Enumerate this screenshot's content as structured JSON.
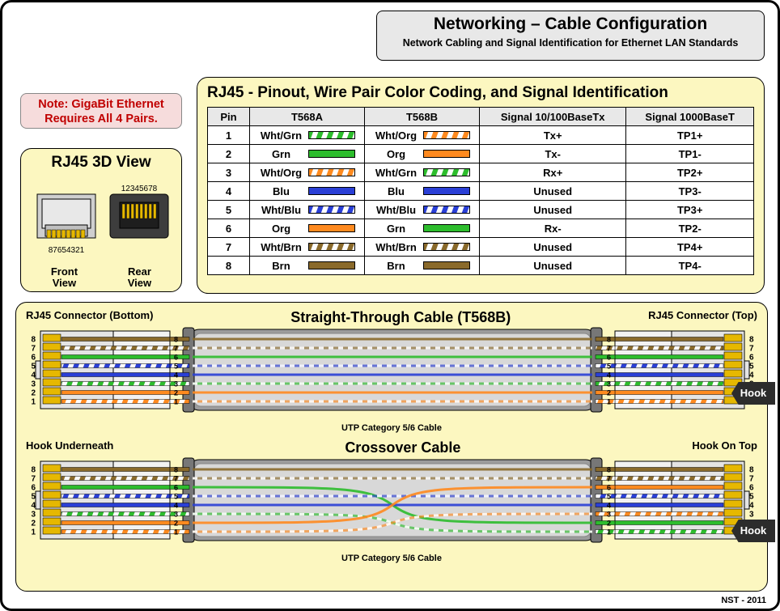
{
  "header": {
    "title": "Networking – Cable Configuration",
    "subtitle": "Network Cabling and Signal Identification for Ethernet LAN Standards"
  },
  "note": {
    "line1": "Note: GigaBit Ethernet",
    "line2": "Requires All 4 Pairs."
  },
  "rj45_3d": {
    "title": "RJ45 3D View",
    "front_label": "Front\nView",
    "rear_label": "Rear\nView",
    "front_pins": "87654321",
    "rear_pins": "12345678"
  },
  "pinout": {
    "title": "RJ45 -  Pinout, Wire Pair Color Coding, and Signal Identification",
    "columns": [
      "Pin",
      "T568A",
      "T568B",
      "Signal 10/100BaseTx",
      "Signal 1000BaseT"
    ],
    "rows": [
      {
        "pin": "1",
        "a": {
          "name": "Wht/Grn",
          "stripe": true,
          "color": "#2dbd2d"
        },
        "b": {
          "name": "Wht/Org",
          "stripe": true,
          "color": "#ff8a1f"
        },
        "sig100": "Tx+",
        "sig1000": "TP1+"
      },
      {
        "pin": "2",
        "a": {
          "name": "Grn",
          "stripe": false,
          "color": "#2dbd2d"
        },
        "b": {
          "name": "Org",
          "stripe": false,
          "color": "#ff8a1f"
        },
        "sig100": "Tx-",
        "sig1000": "TP1-"
      },
      {
        "pin": "3",
        "a": {
          "name": "Wht/Org",
          "stripe": true,
          "color": "#ff8a1f"
        },
        "b": {
          "name": "Wht/Grn",
          "stripe": true,
          "color": "#2dbd2d"
        },
        "sig100": "Rx+",
        "sig1000": "TP2+"
      },
      {
        "pin": "4",
        "a": {
          "name": "Blu",
          "stripe": false,
          "color": "#2a3fd6"
        },
        "b": {
          "name": "Blu",
          "stripe": false,
          "color": "#2a3fd6"
        },
        "sig100": "Unused",
        "sig1000": "TP3-"
      },
      {
        "pin": "5",
        "a": {
          "name": "Wht/Blu",
          "stripe": true,
          "color": "#2a3fd6"
        },
        "b": {
          "name": "Wht/Blu",
          "stripe": true,
          "color": "#2a3fd6"
        },
        "sig100": "Unused",
        "sig1000": "TP3+"
      },
      {
        "pin": "6",
        "a": {
          "name": "Org",
          "stripe": false,
          "color": "#ff8a1f"
        },
        "b": {
          "name": "Grn",
          "stripe": false,
          "color": "#2dbd2d"
        },
        "sig100": "Rx-",
        "sig1000": "TP2-"
      },
      {
        "pin": "7",
        "a": {
          "name": "Wht/Brn",
          "stripe": true,
          "color": "#8a6a2b"
        },
        "b": {
          "name": "Wht/Brn",
          "stripe": true,
          "color": "#8a6a2b"
        },
        "sig100": "Unused",
        "sig1000": "TP4+"
      },
      {
        "pin": "8",
        "a": {
          "name": "Brn",
          "stripe": false,
          "color": "#8a6a2b"
        },
        "b": {
          "name": "Brn",
          "stripe": false,
          "color": "#8a6a2b"
        },
        "sig100": "Unused",
        "sig1000": "TP4-"
      }
    ]
  },
  "colors": {
    "org": "#ff8a1f",
    "grn": "#2dbd2d",
    "blu": "#2a3fd6",
    "brn": "#8a6a2b",
    "panel_yellow": "#fcf7c0",
    "panel_gray": "#e8e8e8",
    "note_bg": "#f6dcdc",
    "gold": "#e6b800",
    "conn_body": "#e4e4e4",
    "cable_sheath": "#9c9c9c",
    "cable_core": "#d8d8d8",
    "hook": "#2c2c2c"
  },
  "cables": {
    "left_label": "RJ45 Connector (Bottom)",
    "right_label": "RJ45 Connector (Top)",
    "hook_under": "Hook Underneath",
    "hook_top": "Hook On Top",
    "utp_label": "UTP Category 5/6 Cable",
    "hook_text": "Hook",
    "straight": {
      "title": "Straight-Through Cable (T568B)",
      "left_order": [
        "brn",
        "wbrn",
        "grn",
        "wblu",
        "blu",
        "wgrn",
        "org",
        "worg"
      ],
      "right_order": [
        "brn",
        "wbrn",
        "grn",
        "wblu",
        "blu",
        "wgrn",
        "org",
        "worg"
      ],
      "pins_left": [
        "8",
        "7",
        "6",
        "5",
        "4",
        "3",
        "2",
        "1"
      ],
      "pins_right": [
        "8",
        "7",
        "6",
        "5",
        "4",
        "3",
        "2",
        "1"
      ],
      "cross": false
    },
    "crossover": {
      "title": "Crossover Cable",
      "left_order": [
        "brn",
        "wbrn",
        "grn",
        "wblu",
        "blu",
        "wgrn",
        "org",
        "worg"
      ],
      "right_order": [
        "brn",
        "wbrn",
        "org",
        "wblu",
        "blu",
        "worg",
        "grn",
        "wgrn"
      ],
      "pins_left": [
        "8",
        "7",
        "6",
        "5",
        "4",
        "3",
        "2",
        "1"
      ],
      "pins_right": [
        "8",
        "7",
        "6",
        "5",
        "4",
        "3",
        "2",
        "1"
      ],
      "cross": true
    }
  },
  "wire_defs": {
    "worg": {
      "stripe": true,
      "color": "#ff8a1f"
    },
    "org": {
      "stripe": false,
      "color": "#ff8a1f"
    },
    "wgrn": {
      "stripe": true,
      "color": "#2dbd2d"
    },
    "grn": {
      "stripe": false,
      "color": "#2dbd2d"
    },
    "wblu": {
      "stripe": true,
      "color": "#2a3fd6"
    },
    "blu": {
      "stripe": false,
      "color": "#2a3fd6"
    },
    "wbrn": {
      "stripe": true,
      "color": "#8a6a2b"
    },
    "brn": {
      "stripe": false,
      "color": "#8a6a2b"
    }
  },
  "footer": "NST - 2011"
}
